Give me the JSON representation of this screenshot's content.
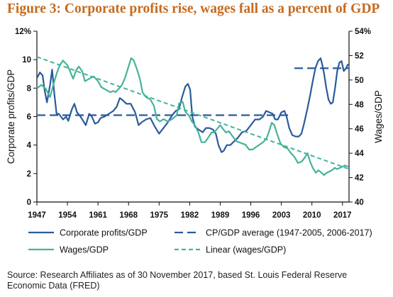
{
  "title": "Figure 3: Corporate profits rise, wages fall as a percent of GDP",
  "source": "Source: Research Affiliates as of 30 November 2017, based St. Louis Federal Reserve Economic Data (FRED)",
  "colors": {
    "profits": "#2a5b9c",
    "wages": "#46b39a",
    "title": "#c56a1e",
    "axis": "#111111"
  },
  "chart_data": {
    "type": "line",
    "title": "Figure 3: Corporate profits rise, wages fall as a percent of GDP",
    "xlabel": "",
    "ylabel": "Corporate profits/GDP",
    "y2label": "Wages/GDP",
    "xlim": [
      1947,
      2018.5
    ],
    "ylim": [
      0,
      12
    ],
    "y2lim": [
      40,
      54
    ],
    "x_ticks": [
      "1947",
      "1954",
      "1961",
      "1968",
      "1975",
      "1982",
      "1989",
      "1996",
      "2003",
      "2010",
      "2017"
    ],
    "y_ticks": [
      "0",
      "2",
      "4",
      "6",
      "8",
      "10",
      "12%"
    ],
    "y2_ticks": [
      "40",
      "42",
      "44",
      "46",
      "48",
      "50",
      "52",
      "54%"
    ],
    "grid": false,
    "legend_position": "bottom",
    "series": [
      {
        "name": "Corporate profits/GDP",
        "axis": "left",
        "style": "solid",
        "points": [
          [
            1947,
            8.7
          ],
          [
            1947.7,
            9.1
          ],
          [
            1948.3,
            8.9
          ],
          [
            1948.8,
            7.8
          ],
          [
            1949.3,
            7.0
          ],
          [
            1950,
            8.2
          ],
          [
            1950.5,
            9.3
          ],
          [
            1951,
            7.6
          ],
          [
            1951.5,
            6.2
          ],
          [
            1952,
            6.2
          ],
          [
            1953,
            5.8
          ],
          [
            1953.7,
            6.0
          ],
          [
            1954.2,
            5.7
          ],
          [
            1955,
            6.5
          ],
          [
            1955.6,
            6.9
          ],
          [
            1956.2,
            6.3
          ],
          [
            1957,
            6.0
          ],
          [
            1957.6,
            5.7
          ],
          [
            1958.2,
            5.4
          ],
          [
            1959,
            6.2
          ],
          [
            1959.6,
            6.0
          ],
          [
            1960.3,
            5.5
          ],
          [
            1961,
            5.6
          ],
          [
            1961.6,
            5.9
          ],
          [
            1962.5,
            6.0
          ],
          [
            1963.5,
            6.2
          ],
          [
            1964.5,
            6.4
          ],
          [
            1965.3,
            6.7
          ],
          [
            1966,
            7.3
          ],
          [
            1966.5,
            7.2
          ],
          [
            1967.5,
            6.9
          ],
          [
            1968.5,
            6.9
          ],
          [
            1969.5,
            6.3
          ],
          [
            1970.3,
            5.4
          ],
          [
            1971,
            5.6
          ],
          [
            1972,
            5.8
          ],
          [
            1973,
            5.9
          ],
          [
            1974,
            5.3
          ],
          [
            1975,
            4.8
          ],
          [
            1976,
            5.2
          ],
          [
            1977,
            5.6
          ],
          [
            1978,
            6.1
          ],
          [
            1978.8,
            6.4
          ],
          [
            1979.5,
            6.5
          ],
          [
            1980.3,
            7.4
          ],
          [
            1981,
            8.1
          ],
          [
            1981.6,
            8.3
          ],
          [
            1982.1,
            7.9
          ],
          [
            1982.6,
            6.0
          ],
          [
            1983.2,
            5.3
          ],
          [
            1984,
            5.1
          ],
          [
            1985,
            4.9
          ],
          [
            1985.7,
            5.2
          ],
          [
            1986.5,
            5.2
          ],
          [
            1987.3,
            5.1
          ],
          [
            1988,
            4.8
          ],
          [
            1988.6,
            4.0
          ],
          [
            1989.3,
            3.5
          ],
          [
            1989.8,
            3.6
          ],
          [
            1990.5,
            4.0
          ],
          [
            1991.3,
            4.0
          ],
          [
            1992,
            4.2
          ],
          [
            1993,
            4.5
          ],
          [
            1994,
            4.9
          ],
          [
            1995,
            5.0
          ],
          [
            1996,
            5.4
          ],
          [
            1997,
            5.8
          ],
          [
            1998,
            5.8
          ],
          [
            1998.8,
            6.0
          ],
          [
            1999.5,
            6.4
          ],
          [
            2000.3,
            6.3
          ],
          [
            2001,
            6.2
          ],
          [
            2001.6,
            5.8
          ],
          [
            2002.2,
            5.8
          ],
          [
            2003,
            6.3
          ],
          [
            2003.7,
            6.4
          ],
          [
            2004.2,
            6.0
          ],
          [
            2004.8,
            5.2
          ],
          [
            2005.5,
            4.7
          ],
          [
            2006.3,
            4.6
          ],
          [
            2007,
            4.6
          ],
          [
            2007.6,
            4.8
          ],
          [
            2008.2,
            5.5
          ],
          [
            2009,
            6.6
          ],
          [
            2009.6,
            7.5
          ],
          [
            2010.2,
            8.5
          ],
          [
            2010.8,
            9.4
          ],
          [
            2011.4,
            9.9
          ],
          [
            2012,
            10.1
          ],
          [
            2012.4,
            9.6
          ],
          [
            2012.8,
            9.0
          ],
          [
            2013.3,
            8.0
          ],
          [
            2013.8,
            7.2
          ],
          [
            2014.3,
            6.9
          ],
          [
            2014.8,
            7.0
          ],
          [
            2015.3,
            8.0
          ],
          [
            2015.8,
            9.2
          ],
          [
            2016.3,
            9.8
          ],
          [
            2016.8,
            9.9
          ],
          [
            2017.3,
            9.2
          ],
          [
            2017.8,
            9.4
          ],
          [
            2018.3,
            9.7
          ]
        ]
      },
      {
        "name": "CP/GDP average (1947-2005, 2006-2017)",
        "axis": "left",
        "style": "dashed",
        "segments": [
          {
            "x": [
              1947,
              2005
            ],
            "y": 6.1
          },
          {
            "x": [
              2006,
              2018.5
            ],
            "y": 9.4
          }
        ]
      },
      {
        "name": "Wages/GDP",
        "axis": "right",
        "style": "solid",
        "points": [
          [
            1947,
            49.3
          ],
          [
            1948,
            49.6
          ],
          [
            1949,
            49.3
          ],
          [
            1950,
            48.6
          ],
          [
            1951,
            49.9
          ],
          [
            1951.6,
            50.6
          ],
          [
            1952.2,
            51.2
          ],
          [
            1953,
            51.6
          ],
          [
            1954,
            51.2
          ],
          [
            1954.6,
            50.7
          ],
          [
            1955.3,
            50.1
          ],
          [
            1956,
            50.8
          ],
          [
            1956.6,
            51.1
          ],
          [
            1957.4,
            50.7
          ],
          [
            1958,
            49.9
          ],
          [
            1959,
            50.1
          ],
          [
            1960,
            50.3
          ],
          [
            1961,
            49.9
          ],
          [
            1961.8,
            49.4
          ],
          [
            1962.8,
            49.2
          ],
          [
            1963.8,
            49.0
          ],
          [
            1964.5,
            49.1
          ],
          [
            1965,
            49.0
          ],
          [
            1965.8,
            49.3
          ],
          [
            1966.5,
            49.6
          ],
          [
            1967.2,
            50.2
          ],
          [
            1968,
            51.1
          ],
          [
            1968.6,
            51.8
          ],
          [
            1969.2,
            51.6
          ],
          [
            1970,
            50.8
          ],
          [
            1970.6,
            50.1
          ],
          [
            1971.2,
            49.0
          ],
          [
            1972,
            48.6
          ],
          [
            1973,
            48.4
          ],
          [
            1973.8,
            47.9
          ],
          [
            1974.5,
            46.8
          ],
          [
            1975.2,
            46.6
          ],
          [
            1976,
            46.8
          ],
          [
            1977,
            46.6
          ],
          [
            1978,
            46.8
          ],
          [
            1979,
            47.1
          ],
          [
            1979.6,
            48.1
          ],
          [
            1980.4,
            48.2
          ],
          [
            1981,
            47.4
          ],
          [
            1981.8,
            47.1
          ],
          [
            1982.5,
            46.6
          ],
          [
            1983.2,
            46.3
          ],
          [
            1984,
            45.7
          ],
          [
            1984.7,
            44.9
          ],
          [
            1985.5,
            44.9
          ],
          [
            1986.3,
            45.3
          ],
          [
            1987,
            45.7
          ],
          [
            1987.6,
            45.7
          ],
          [
            1988.3,
            46.0
          ],
          [
            1989,
            46.3
          ],
          [
            1989.6,
            46.0
          ],
          [
            1990.3,
            45.7
          ],
          [
            1991,
            45.8
          ],
          [
            1991.8,
            45.4
          ],
          [
            1992.6,
            45.0
          ],
          [
            1993.3,
            44.9
          ],
          [
            1994,
            44.8
          ],
          [
            1994.8,
            44.7
          ],
          [
            1995.6,
            44.3
          ],
          [
            1996.4,
            44.3
          ],
          [
            1997.2,
            44.5
          ],
          [
            1998,
            44.7
          ],
          [
            1998.8,
            44.9
          ],
          [
            1999.6,
            45.2
          ],
          [
            2000.2,
            45.8
          ],
          [
            2000.8,
            46.5
          ],
          [
            2001.4,
            46.3
          ],
          [
            2002,
            45.6
          ],
          [
            2002.8,
            44.8
          ],
          [
            2003.6,
            44.5
          ],
          [
            2004.4,
            44.4
          ],
          [
            2005.2,
            44.0
          ],
          [
            2006,
            43.7
          ],
          [
            2006.8,
            43.2
          ],
          [
            2007.6,
            43.3
          ],
          [
            2008.3,
            43.6
          ],
          [
            2009,
            44.0
          ],
          [
            2009.6,
            43.3
          ],
          [
            2010.2,
            42.8
          ],
          [
            2010.9,
            42.4
          ],
          [
            2011.5,
            42.6
          ],
          [
            2012.2,
            42.4
          ],
          [
            2012.8,
            42.2
          ],
          [
            2013.4,
            42.4
          ],
          [
            2014,
            42.5
          ],
          [
            2014.6,
            42.6
          ],
          [
            2015.2,
            42.8
          ],
          [
            2015.8,
            42.7
          ],
          [
            2016.4,
            42.8
          ],
          [
            2017,
            42.9
          ],
          [
            2017.6,
            43.0
          ],
          [
            2018.3,
            42.9
          ]
        ]
      },
      {
        "name": "Linear (wages/GDP)",
        "axis": "right",
        "style": "dashed",
        "points": [
          [
            1947,
            51.9
          ],
          [
            2018.5,
            42.7
          ]
        ]
      }
    ]
  }
}
